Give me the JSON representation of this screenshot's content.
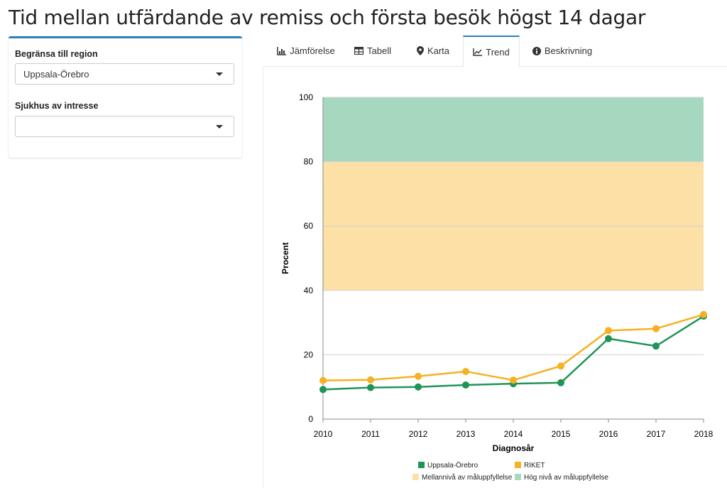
{
  "page": {
    "title": "Tid mellan utfärdande av remiss och första besök högst 14 dagar"
  },
  "filters": {
    "region": {
      "label": "Begränsa till region",
      "value": "Uppsala-Örebro"
    },
    "hospital": {
      "label": "Sjukhus av intresse",
      "value": ""
    }
  },
  "tabs": [
    {
      "label": "Jämförelse",
      "icon": "bar-chart-icon",
      "active": false
    },
    {
      "label": "Tabell",
      "icon": "table-icon",
      "active": false
    },
    {
      "label": "Karta",
      "icon": "map-marker-icon",
      "active": false
    },
    {
      "label": "Trend",
      "icon": "line-chart-icon",
      "active": true
    },
    {
      "label": "Beskrivning",
      "icon": "info-circle-icon",
      "active": false
    }
  ],
  "colors": {
    "accent": "#2c7fb8",
    "region_line": "#1f9458",
    "riket_line": "#f5b121",
    "mid_band": "#fde0a6",
    "high_band": "#a6d8bf"
  },
  "chart_data": {
    "type": "line",
    "xlabel": "Diagnosår",
    "ylabel": "Procent",
    "x": [
      2010,
      2011,
      2012,
      2013,
      2014,
      2015,
      2016,
      2017,
      2018
    ],
    "ylim": [
      0,
      100
    ],
    "yticks": [
      0,
      20,
      40,
      60,
      80,
      100
    ],
    "grid": true,
    "bands": [
      {
        "name": "Mellannivå av måluppfyllelse",
        "from": 40,
        "to": 80,
        "color": "#fde0a6"
      },
      {
        "name": "Hög nivå av måluppfyllelse",
        "from": 80,
        "to": 100,
        "color": "#a6d8bf"
      }
    ],
    "series": [
      {
        "name": "Uppsala-Örebro",
        "color": "#1f9458",
        "values": [
          9.2,
          9.8,
          10.0,
          10.6,
          11.0,
          11.3,
          25.0,
          22.7,
          32.0
        ]
      },
      {
        "name": "RIKET",
        "color": "#f5b121",
        "values": [
          12.0,
          12.2,
          13.3,
          14.8,
          12.1,
          16.5,
          27.5,
          28.1,
          32.5
        ]
      }
    ],
    "legend_position": "bottom"
  }
}
